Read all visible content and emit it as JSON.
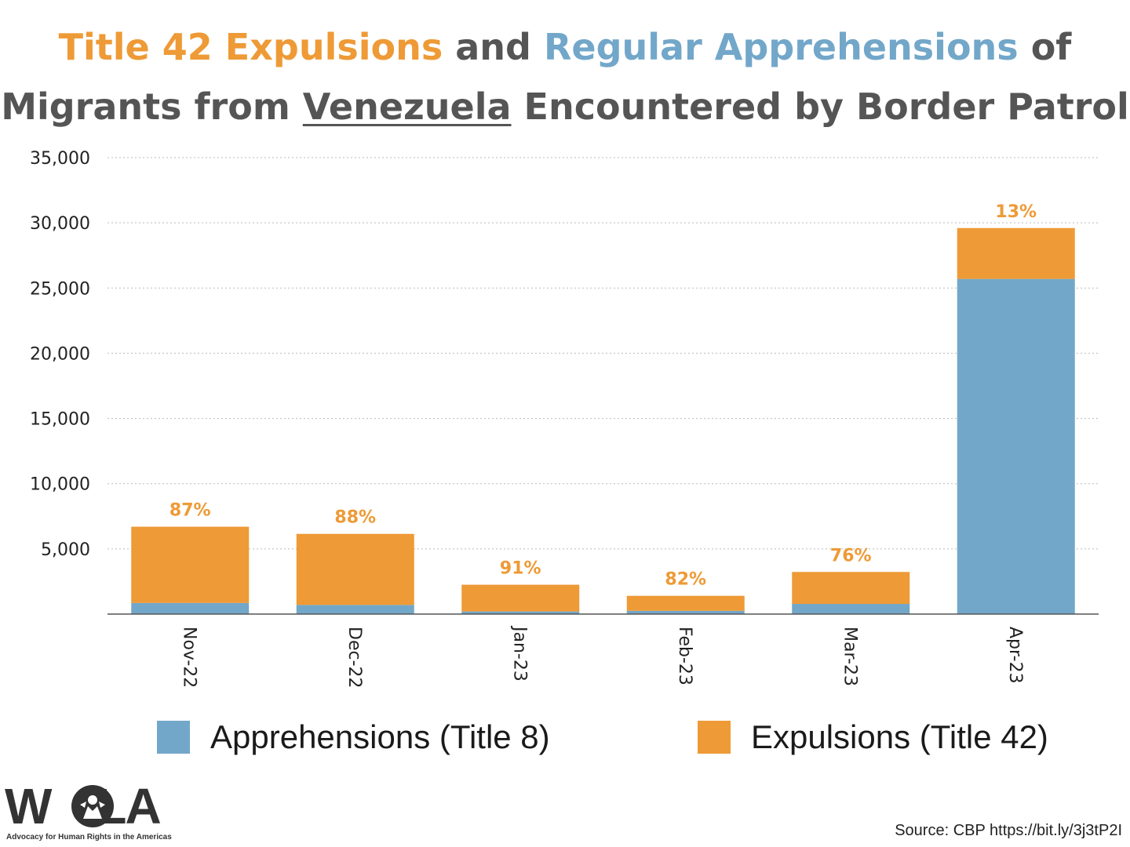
{
  "title": {
    "part1": "Title 42 Expulsions",
    "part2": " and ",
    "part3": "Regular Apprehensions",
    "part4": " of",
    "part5": "Migrants from ",
    "part6": "Venezuela",
    "part7": " Encountered by Border Patrol"
  },
  "colors": {
    "apprehensions": "#72A7C9",
    "expulsions": "#EE9A36",
    "title_gray": "#555555",
    "grid": "#BBBBBB",
    "axis": "#555555"
  },
  "chart_data": {
    "type": "bar",
    "stacked": true,
    "categories": [
      "Nov-22",
      "Dec-22",
      "Jan-23",
      "Feb-23",
      "Mar-23",
      "Apr-23"
    ],
    "series": [
      {
        "name": "Apprehensions (Title 8)",
        "values": [
          850,
          700,
          200,
          250,
          780,
          25700
        ]
      },
      {
        "name": "Expulsions (Title 42)",
        "values": [
          5850,
          5450,
          2050,
          1150,
          2450,
          3900
        ]
      }
    ],
    "data_labels": [
      "87%",
      "88%",
      "91%",
      "82%",
      "76%",
      "13%"
    ],
    "ylim": [
      0,
      35000
    ],
    "yticks": [
      5000,
      10000,
      15000,
      20000,
      25000,
      30000,
      35000
    ],
    "ytick_labels": [
      "5,000",
      "10,000",
      "15,000",
      "20,000",
      "25,000",
      "30,000",
      "35,000"
    ],
    "grid": "horizontal dotted",
    "legend": "bottom",
    "xlabel": "",
    "ylabel": ""
  },
  "legend": {
    "apprehensions_label": "Apprehensions (Title 8)",
    "expulsions_label": "Expulsions (Title 42)"
  },
  "logo": {
    "name": "W  LA",
    "tagline": "Advocacy for Human Rights in the Americas"
  },
  "source": "Source: CBP https://bit.ly/3j3tP2I"
}
